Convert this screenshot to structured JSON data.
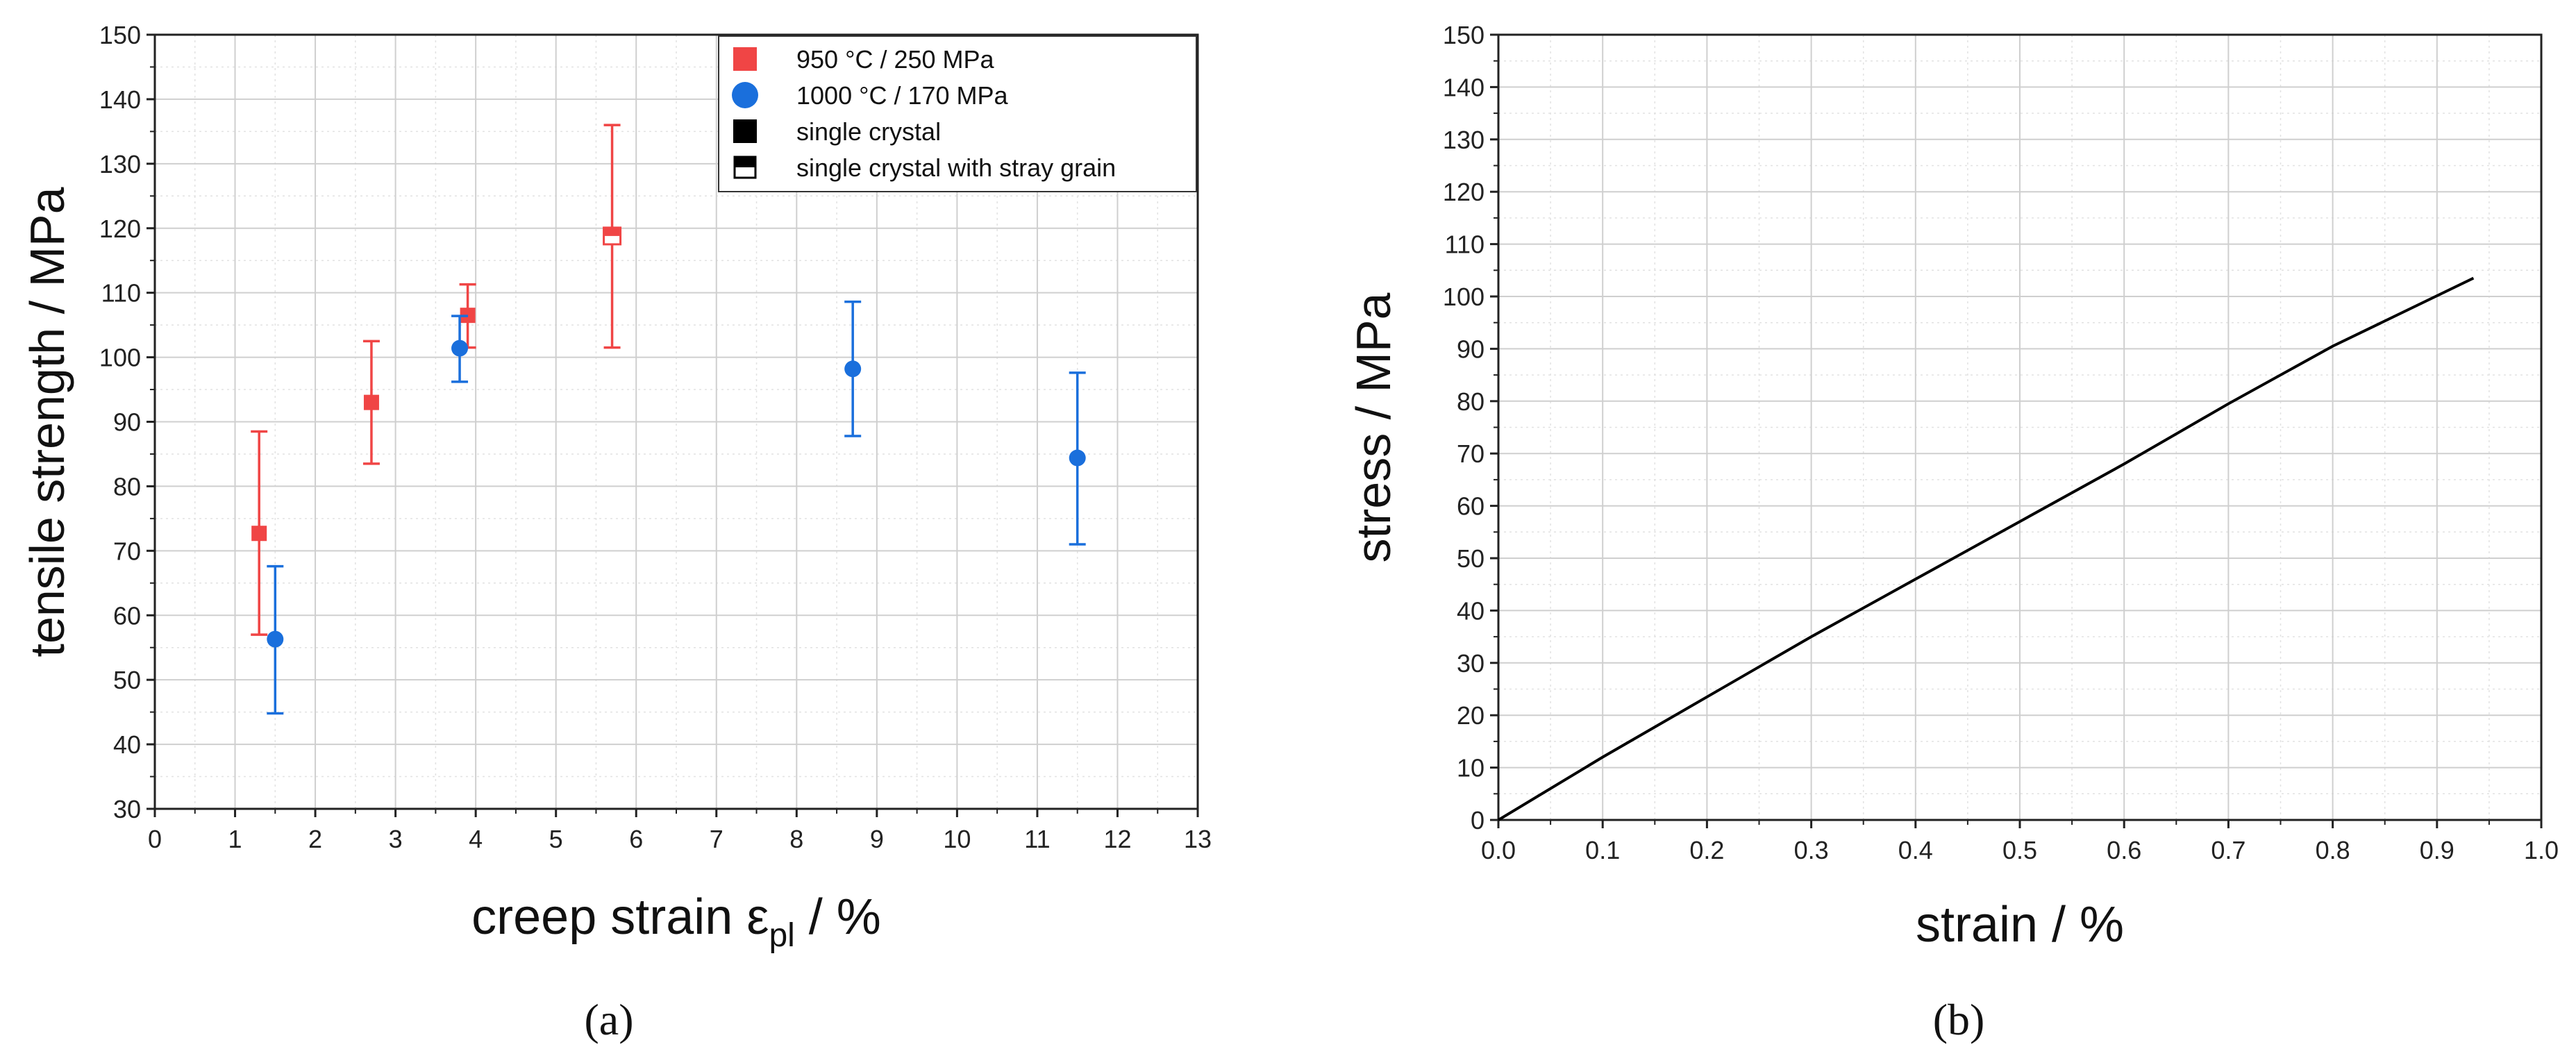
{
  "chart_data": [
    {
      "panel": "(a)",
      "type": "scatter",
      "xlabel_main": "creep strain ε",
      "xlabel_sub": "pl",
      "xlabel_unit": " / %",
      "ylabel": "tensile strength / MPa",
      "xlim": [
        0,
        13
      ],
      "ylim": [
        30,
        150
      ],
      "xticks": [
        "0",
        "1",
        "2",
        "3",
        "4",
        "5",
        "6",
        "7",
        "8",
        "9",
        "10",
        "11",
        "12",
        "13"
      ],
      "yticks": [
        "30",
        "40",
        "50",
        "60",
        "70",
        "80",
        "90",
        "100",
        "110",
        "120",
        "130",
        "140",
        "150"
      ],
      "grid": true,
      "legend_position": "top-right",
      "legend": [
        {
          "label": "950 °C   / 250 MPa",
          "marker": "square",
          "color": "#f04545"
        },
        {
          "label": "1000 °C / 170 MPa",
          "marker": "circle",
          "color": "#1a6fdc"
        },
        {
          "label": "single crystal",
          "marker": "square",
          "color": "#000000"
        },
        {
          "label": "single crystal with stray grain",
          "marker": "half-square",
          "color": "#000000"
        }
      ],
      "series": [
        {
          "name": "950 °C / 250 MPa",
          "color": "#f04545",
          "marker": "square",
          "points": [
            {
              "x": 1.3,
              "y": 72.7,
              "y_low": 57.0,
              "y_high": 88.5,
              "crystal": "single crystal"
            },
            {
              "x": 2.7,
              "y": 93.0,
              "y_low": 83.5,
              "y_high": 102.5,
              "crystal": "single crystal"
            },
            {
              "x": 3.9,
              "y": 106.5,
              "y_low": 101.5,
              "y_high": 111.3,
              "crystal": "single crystal"
            },
            {
              "x": 5.7,
              "y": 118.8,
              "y_low": 101.5,
              "y_high": 136.0,
              "crystal": "single crystal with stray grain"
            }
          ]
        },
        {
          "name": "1000 °C / 170 MPa",
          "color": "#1a6fdc",
          "marker": "circle",
          "points": [
            {
              "x": 1.5,
              "y": 56.3,
              "y_low": 44.8,
              "y_high": 67.6
            },
            {
              "x": 3.8,
              "y": 101.4,
              "y_low": 96.2,
              "y_high": 106.4
            },
            {
              "x": 8.7,
              "y": 98.2,
              "y_low": 87.8,
              "y_high": 108.6
            },
            {
              "x": 11.5,
              "y": 84.4,
              "y_low": 71.0,
              "y_high": 97.6
            }
          ]
        }
      ]
    },
    {
      "panel": "(b)",
      "type": "line",
      "xlabel": "strain / %",
      "ylabel": "stress / MPa",
      "xlim": [
        0.0,
        1.0
      ],
      "ylim": [
        0,
        150
      ],
      "xticks": [
        "0.0",
        "0.1",
        "0.2",
        "0.3",
        "0.4",
        "0.5",
        "0.6",
        "0.7",
        "0.8",
        "0.9",
        "1.0"
      ],
      "yticks": [
        "0",
        "10",
        "20",
        "30",
        "40",
        "50",
        "60",
        "70",
        "80",
        "90",
        "100",
        "110",
        "120",
        "130",
        "140",
        "150"
      ],
      "grid": true,
      "series": [
        {
          "color": "#000000",
          "x": [
            0.0,
            0.1,
            0.2,
            0.3,
            0.4,
            0.5,
            0.6,
            0.7,
            0.8,
            0.935
          ],
          "y": [
            0.0,
            12.0,
            23.5,
            35.0,
            46.0,
            57.0,
            68.0,
            79.5,
            90.5,
            103.5
          ]
        }
      ]
    }
  ]
}
